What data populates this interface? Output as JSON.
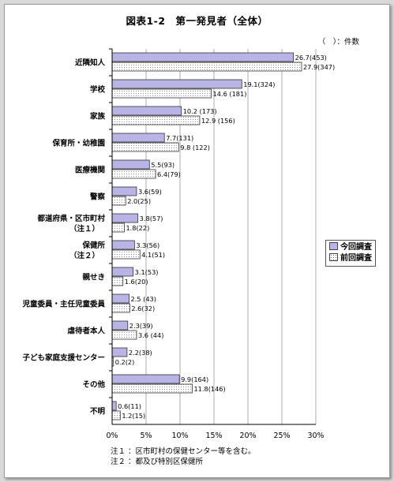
{
  "figure": {
    "title": "図表1-2　第一発見者（全体）",
    "unit_note": "（　）：件数",
    "notes": [
      "注１ ：区市町村の保健センター等を含む。",
      "注２ ：都及び特別区保健所"
    ]
  },
  "chart_data": {
    "type": "bar",
    "orientation": "horizontal",
    "title": "図表1-2　第一発見者（全体）",
    "x_unit": "%",
    "xlim": [
      0,
      30
    ],
    "xticks": [
      "0%",
      "5%",
      "10%",
      "15%",
      "20%",
      "25%",
      "30%"
    ],
    "grid": true,
    "legend_position": "right",
    "category_labels": [
      [
        "近隣知人"
      ],
      [
        "学校"
      ],
      [
        "家族"
      ],
      [
        "保育所・幼稚園"
      ],
      [
        "医療機関"
      ],
      [
        "警察"
      ],
      [
        "都道府県・区市町村",
        "（注１）"
      ],
      [
        "保健所",
        "（注２）"
      ],
      [
        "親せき"
      ],
      [
        "児童委員・主任児童委員"
      ],
      [
        "虐待者本人"
      ],
      [
        "子ども家庭支援センター"
      ],
      [
        "その他"
      ],
      [
        "不明"
      ]
    ],
    "series": [
      {
        "name": "今回調査",
        "color": "#b9b4e6",
        "values": [
          26.7,
          19.1,
          10.2,
          7.7,
          5.5,
          3.6,
          3.8,
          3.3,
          3.1,
          2.5,
          2.3,
          2.2,
          9.9,
          0.6
        ],
        "labels": [
          "26.7(453)",
          "19.1(324)",
          "10.2 (173)",
          "7.7(131)",
          "5.5(93)",
          "3.6(59)",
          "3.8(57)",
          "3.3(56)",
          "3.1(53)",
          "2.5 (43)",
          "2.3(39)",
          "2.2(38)",
          "9.9(164)",
          "0.6(11)"
        ]
      },
      {
        "name": "前回調査",
        "color": "#ffffff",
        "pattern": "dotted",
        "values": [
          27.9,
          14.6,
          12.9,
          9.8,
          6.4,
          2.0,
          1.8,
          4.1,
          1.6,
          2.6,
          3.6,
          0.2,
          11.8,
          1.2
        ],
        "labels": [
          "27.9(347)",
          "14.6 (181)",
          "12.9 (156)",
          "9.8 (122)",
          "6.4(79)",
          "2.0(25)",
          "1.8(22)",
          "4.1(51)",
          "1.6(20)",
          "2.6(32)",
          "3.6 (44)",
          "0.2(2)",
          "11.8(146)",
          "1.2(15)"
        ]
      }
    ]
  }
}
